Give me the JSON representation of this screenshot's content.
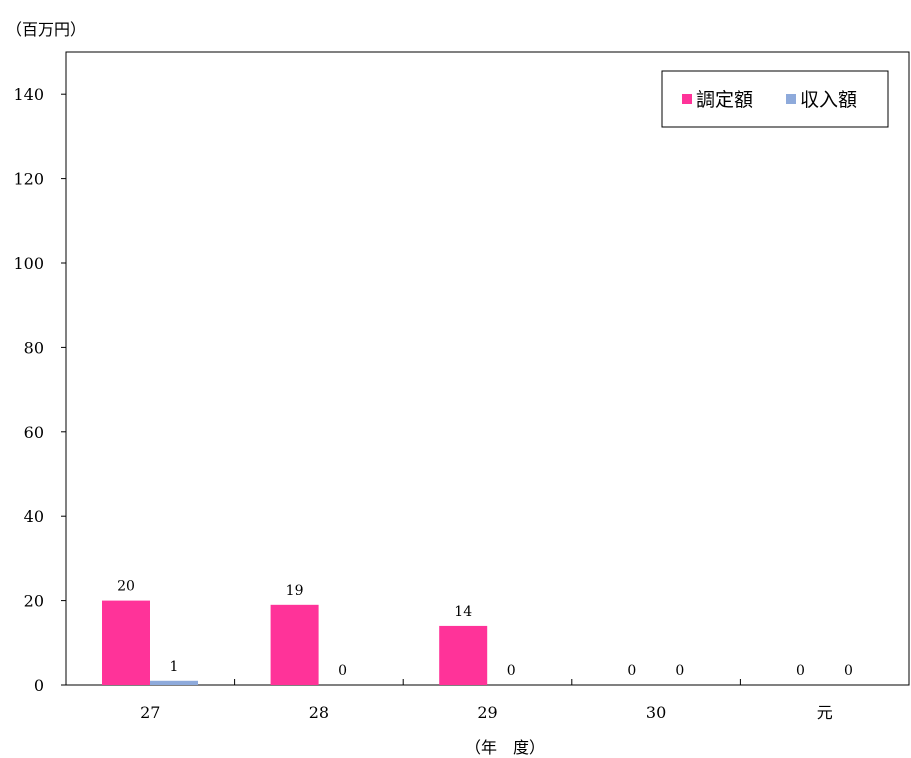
{
  "chart_data": {
    "type": "bar",
    "title": "",
    "unit_label": "（百万円）",
    "xlabel": "（年　度）",
    "ylabel": "",
    "ylim": [
      0,
      150
    ],
    "yticks": [
      0,
      20,
      40,
      60,
      80,
      100,
      120,
      140
    ],
    "categories": [
      "27",
      "28",
      "29",
      "30",
      "元"
    ],
    "series": [
      {
        "name": "調定額",
        "values": [
          20,
          19,
          14,
          0,
          0
        ],
        "color": "#ff3399"
      },
      {
        "name": "収入額",
        "values": [
          1,
          0,
          0,
          0,
          0
        ],
        "color": "#8eaadb"
      }
    ],
    "grid": false,
    "legend": "top-right"
  }
}
